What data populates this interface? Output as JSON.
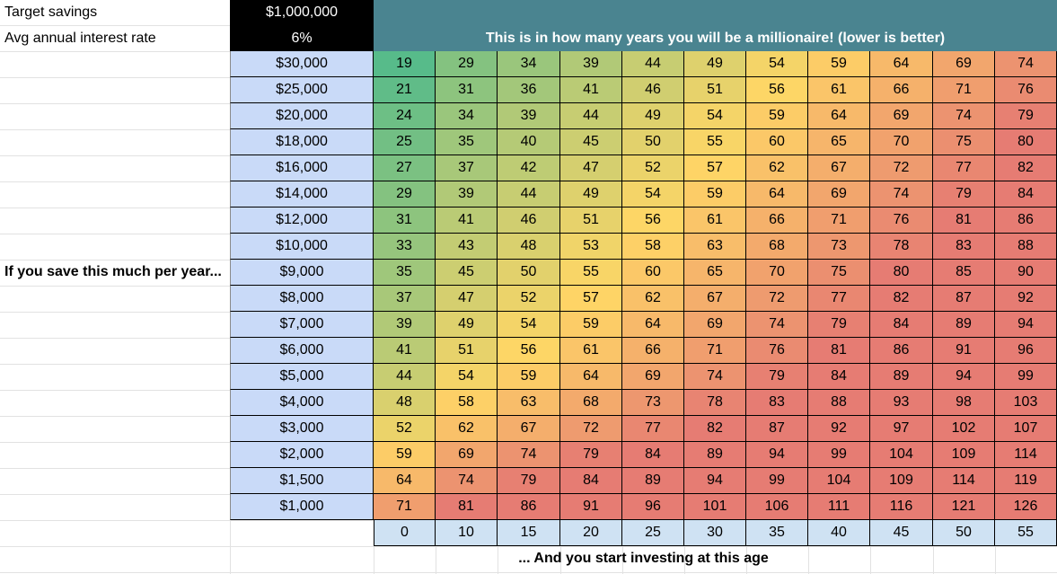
{
  "inputs": {
    "target_label": "Target savings",
    "target_value": "$1,000,000",
    "rate_label": "Avg annual interest rate",
    "rate_value": "6%"
  },
  "banner": "This is in how many years you will be a millionaire! (lower is better)",
  "row_label": "If you save this much per year...",
  "footer": "... And you start investing at this age",
  "savings_rows": [
    "$30,000",
    "$25,000",
    "$20,000",
    "$18,000",
    "$16,000",
    "$14,000",
    "$12,000",
    "$10,000",
    "$9,000",
    "$8,000",
    "$7,000",
    "$6,000",
    "$5,000",
    "$4,000",
    "$3,000",
    "$2,000",
    "$1,500",
    "$1,000"
  ],
  "start_ages": [
    "0",
    "10",
    "15",
    "20",
    "25",
    "30",
    "35",
    "40",
    "45",
    "50",
    "55"
  ],
  "grid": [
    [
      "19",
      "29",
      "34",
      "39",
      "44",
      "49",
      "54",
      "59",
      "64",
      "69",
      "74"
    ],
    [
      "21",
      "31",
      "36",
      "41",
      "46",
      "51",
      "56",
      "61",
      "66",
      "71",
      "76"
    ],
    [
      "24",
      "34",
      "39",
      "44",
      "49",
      "54",
      "59",
      "64",
      "69",
      "74",
      "79"
    ],
    [
      "25",
      "35",
      "40",
      "45",
      "50",
      "55",
      "60",
      "65",
      "70",
      "75",
      "80"
    ],
    [
      "27",
      "37",
      "42",
      "47",
      "52",
      "57",
      "62",
      "67",
      "72",
      "77",
      "82"
    ],
    [
      "29",
      "39",
      "44",
      "49",
      "54",
      "59",
      "64",
      "69",
      "74",
      "79",
      "84"
    ],
    [
      "31",
      "41",
      "46",
      "51",
      "56",
      "61",
      "66",
      "71",
      "76",
      "81",
      "86"
    ],
    [
      "33",
      "43",
      "48",
      "53",
      "58",
      "63",
      "68",
      "73",
      "78",
      "83",
      "88"
    ],
    [
      "35",
      "45",
      "50",
      "55",
      "60",
      "65",
      "70",
      "75",
      "80",
      "85",
      "90"
    ],
    [
      "37",
      "47",
      "52",
      "57",
      "62",
      "67",
      "72",
      "77",
      "82",
      "87",
      "92"
    ],
    [
      "39",
      "49",
      "54",
      "59",
      "64",
      "69",
      "74",
      "79",
      "84",
      "89",
      "94"
    ],
    [
      "41",
      "51",
      "56",
      "61",
      "66",
      "71",
      "76",
      "81",
      "86",
      "91",
      "96"
    ],
    [
      "44",
      "54",
      "59",
      "64",
      "69",
      "74",
      "79",
      "84",
      "89",
      "94",
      "99"
    ],
    [
      "48",
      "58",
      "63",
      "68",
      "73",
      "78",
      "83",
      "88",
      "93",
      "98",
      "103"
    ],
    [
      "52",
      "62",
      "67",
      "72",
      "77",
      "82",
      "87",
      "92",
      "97",
      "102",
      "107"
    ],
    [
      "59",
      "69",
      "74",
      "79",
      "84",
      "89",
      "94",
      "99",
      "104",
      "109",
      "114"
    ],
    [
      "64",
      "74",
      "79",
      "84",
      "89",
      "94",
      "99",
      "104",
      "109",
      "114",
      "119"
    ],
    [
      "71",
      "81",
      "86",
      "91",
      "96",
      "101",
      "106",
      "111",
      "116",
      "121",
      "126"
    ]
  ],
  "colors": {
    "scale_low": "#57bb8a",
    "scale_mid": "#ffd666",
    "scale_high": "#e67c73",
    "banner_bg": "#4a8490",
    "savings_bg": "#c9daf8",
    "age_bg": "#cfe2f3"
  }
}
